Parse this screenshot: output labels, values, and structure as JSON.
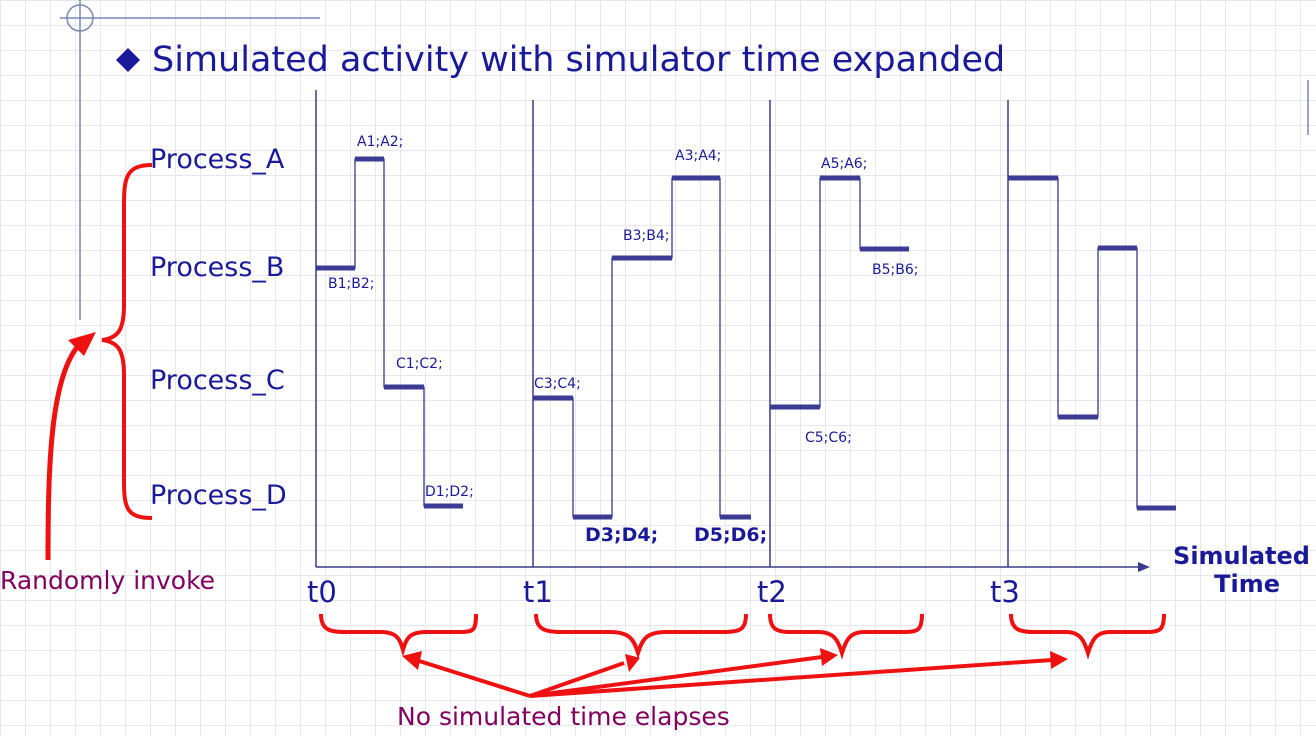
{
  "title": "Simulated activity with simulator time expanded",
  "processes": [
    "Process_A",
    "Process_B",
    "Process_C",
    "Process_D"
  ],
  "ticks": [
    "t0",
    "t1",
    "t2",
    "t3"
  ],
  "events": {
    "a1a2": "A1;A2;",
    "b1b2": "B1;B2;",
    "c1c2": "C1;C2;",
    "d1d2": "D1;D2;",
    "c3c4": "C3;C4;",
    "d3d4": "D3;D4;",
    "b3b4": "B3;B4;",
    "a3a4": "A3;A4;",
    "d5d6": "D5;D6;",
    "c5c6": "C5;C6;",
    "a5a6": "A5;A6;",
    "b5b6": "B5;B6;"
  },
  "axis_label_line1": "Simulated",
  "axis_label_line2": "Time",
  "left_note": "Randomly invoke",
  "bottom_note": "No simulated time elapses",
  "colors": {
    "ink": "#1a1a99",
    "trace": "#3a3a8a",
    "bar": "#3c3c94",
    "accent_red": "#ee1111",
    "note_purple": "#800060"
  }
}
